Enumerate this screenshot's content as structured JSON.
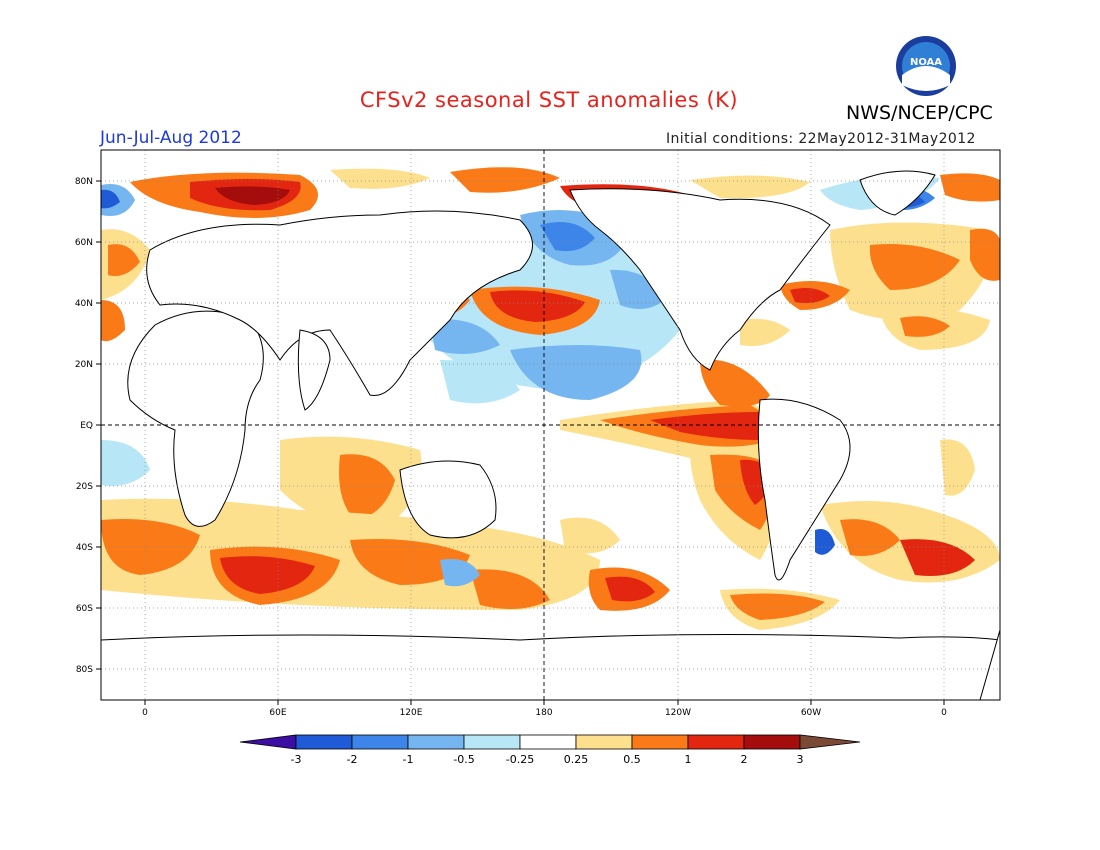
{
  "title": "CFSv2 seasonal SST anomalies (K)",
  "agency": "NWS/NCEP/CPC",
  "logo_text": "NOAA",
  "period": "Jun-Jul-Aug 2012",
  "initial_conditions": "Initial conditions: 22May2012-31May2012",
  "lat_labels": [
    "80N",
    "60N",
    "40N",
    "20N",
    "EQ",
    "20S",
    "40S",
    "60S",
    "80S"
  ],
  "lon_labels": [
    "0",
    "60E",
    "120E",
    "180",
    "120W",
    "60W",
    "0"
  ],
  "colorbar": {
    "labels": [
      "-3",
      "-2",
      "-1",
      "-0.5",
      "-0.25",
      "0.25",
      "0.5",
      "1",
      "2",
      "3"
    ],
    "colors": [
      "#3b0fa3",
      "#1f5bd6",
      "#3d85e8",
      "#76b6f0",
      "#b7e6f6",
      "#ffffff",
      "#fde08e",
      "#fb7a18",
      "#e3260f",
      "#a50c0c",
      "#7a4a36"
    ]
  },
  "colors": {
    "title": "#e8221a",
    "period": "#1e3ad8",
    "land": "#ffffff",
    "coast": "#000000"
  }
}
